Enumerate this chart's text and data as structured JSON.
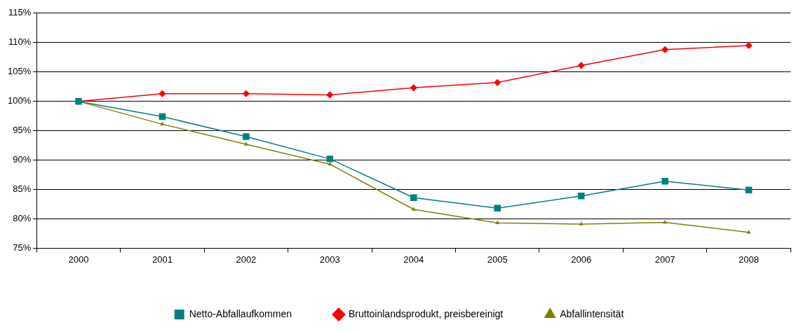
{
  "chart_data": {
    "type": "line",
    "categories": [
      "2000",
      "2001",
      "2002",
      "2003",
      "2004",
      "2005",
      "2006",
      "2007",
      "2008"
    ],
    "ylim": [
      75,
      115
    ],
    "yticks": [
      {
        "value": 75,
        "label": "75%"
      },
      {
        "value": 80,
        "label": "80%"
      },
      {
        "value": 85,
        "label": "85%"
      },
      {
        "value": 90,
        "label": "90%"
      },
      {
        "value": 95,
        "label": "95%"
      },
      {
        "value": 100,
        "label": "100%"
      },
      {
        "value": 105,
        "label": "105%"
      },
      {
        "value": 110,
        "label": "110%"
      },
      {
        "value": 115,
        "label": "115%"
      }
    ],
    "grid": "y",
    "legend": "bottom",
    "line_style": "solid",
    "series": [
      {
        "name": "Netto-Abfallaufkommen",
        "color": "#008080",
        "marker": "square",
        "values": [
          100,
          97.4,
          94.0,
          90.2,
          83.6,
          81.8,
          83.9,
          86.4,
          84.9
        ]
      },
      {
        "name": "Bruttoinlandsprodukt, preisbereinigt",
        "color": "#ff0000",
        "marker": "diamond",
        "values": [
          100,
          101.3,
          101.3,
          101.1,
          102.3,
          103.2,
          106.1,
          108.8,
          109.5
        ]
      },
      {
        "name": "Abfallintensität",
        "color": "#808000",
        "marker": "triangle",
        "values": [
          100,
          96.1,
          92.7,
          89.3,
          81.6,
          79.3,
          79.1,
          79.4,
          77.7
        ]
      }
    ]
  }
}
